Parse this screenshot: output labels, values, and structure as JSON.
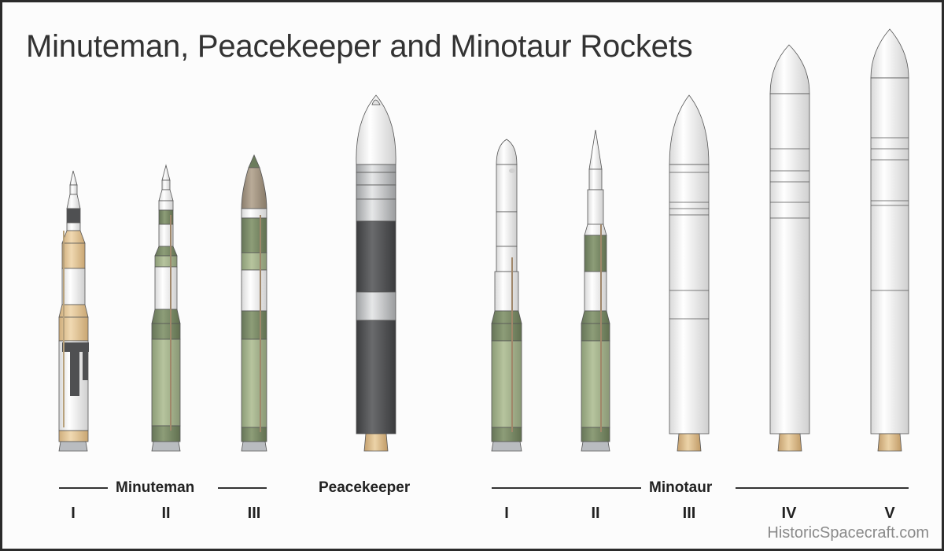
{
  "title": "Minuteman, Peacekeeper and Minotaur Rockets",
  "groups": {
    "minuteman": "Minuteman",
    "peacekeeper": "Peacekeeper",
    "minotaur": "Minotaur"
  },
  "variants": {
    "minuteman": [
      "I",
      "II",
      "III"
    ],
    "minotaur": [
      "I",
      "II",
      "III",
      "IV",
      "V"
    ]
  },
  "credit": "HistoricSpacecraft.com",
  "colors": {
    "olive": "#7d8f6a",
    "light_green": "#a9b88f",
    "tan": "#e3c79a",
    "dark_gray": "#4f5052",
    "silver": "#c4c6c8",
    "white_body": "#f3f3f3",
    "nozzle": "#dcb98a"
  }
}
